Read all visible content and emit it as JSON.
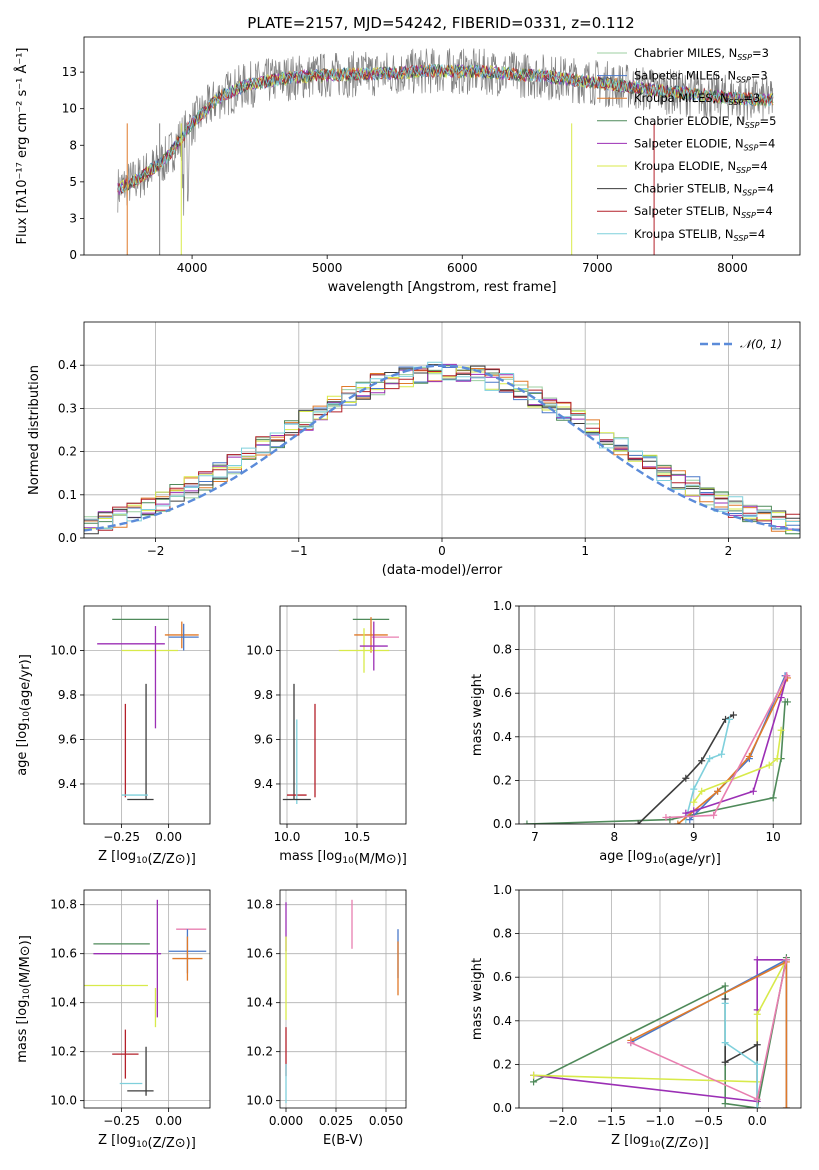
{
  "figure": {
    "title": "PLATE=2157, MJD=54242, FIBERID=0331, z=0.112"
  },
  "chart_data": [
    {
      "id": "spectrum",
      "type": "line",
      "xlabel": "wavelength [Angstrom, rest frame]",
      "ylabel": "Flux [fλ10⁻¹⁷ erg cm⁻² s⁻¹ Å⁻¹]",
      "xlim": [
        3200,
        8500
      ],
      "ylim": [
        0,
        14.9
      ],
      "xticks": [
        4000,
        5000,
        6000,
        7000,
        8000
      ],
      "yticks": [
        0.0,
        2.5,
        5.0,
        7.5,
        10.0,
        12.5
      ],
      "grid": false,
      "legend_position": "right",
      "data_continuum": {
        "x": [
          3450,
          3600,
          3800,
          4000,
          4200,
          4400,
          4700,
          5000,
          5400,
          5800,
          6200,
          6600,
          7000,
          7400,
          7800,
          8200
        ],
        "y": [
          4.5,
          5.2,
          6.5,
          9.0,
          10.8,
          11.6,
          12.1,
          12.3,
          12.4,
          12.6,
          12.5,
          12.2,
          11.8,
          11.3,
          10.9,
          10.6
        ]
      },
      "series": [
        {
          "name": "Chabrier MILES, N_SSP=3",
          "color": "#9ccfa0"
        },
        {
          "name": "Salpeter MILES, N_SSP=3",
          "color": "#4a78c8"
        },
        {
          "name": "Kroupa MILES, N_SSP=3",
          "color": "#e07a2a"
        },
        {
          "name": "Chabrier ELODIE, N_SSP=5",
          "color": "#4f8a5a"
        },
        {
          "name": "Salpeter ELODIE, N_SSP=4",
          "color": "#9b2fb5"
        },
        {
          "name": "Kroupa ELODIE, N_SSP=4",
          "color": "#d8ea4a"
        },
        {
          "name": "Chabrier STELIB, N_SSP=4",
          "color": "#3d3d3d"
        },
        {
          "name": "Salpeter STELIB, N_SSP=4",
          "color": "#b3202a"
        },
        {
          "name": "Kroupa STELIB, N_SSP=4",
          "color": "#7fd0dc"
        }
      ]
    },
    {
      "id": "residuals",
      "type": "line",
      "xlabel": "(data-model)/error",
      "ylabel": "Normed distribution",
      "xlim": [
        -2.5,
        2.5
      ],
      "ylim": [
        0,
        0.5
      ],
      "xticks": [
        -2,
        -1,
        0,
        1,
        2
      ],
      "yticks": [
        0.0,
        0.1,
        0.2,
        0.3,
        0.4
      ],
      "grid": true,
      "legend_position": "top-right",
      "reference_curve": {
        "name": "𝒩(0, 1)",
        "color": "#5b8bd9",
        "mean": 0,
        "sigma": 1
      },
      "histogram_bin_width": 0.1
    },
    {
      "id": "age-vs-Z",
      "type": "scatter",
      "xlabel": "Z [log₁₀(Z/Z⊙)]",
      "ylabel": "age  [log₁₀(age/yr)]",
      "xlim": [
        -0.45,
        0.22
      ],
      "ylim": [
        9.22,
        10.2
      ],
      "xticks": [
        -0.25,
        0.0
      ],
      "yticks": [
        9.4,
        9.6,
        9.8,
        10.0
      ],
      "grid": true,
      "points": [
        {
          "x": -0.15,
          "y": 10.14,
          "xerr": 0.15,
          "yerr": 0.0,
          "color": "#4f8a5a"
        },
        {
          "x": 0.07,
          "y": 10.07,
          "xerr": 0.09,
          "yerr": 0.06,
          "color": "#e07a2a"
        },
        {
          "x": 0.08,
          "y": 10.06,
          "xerr": 0.08,
          "yerr": 0.06,
          "color": "#4a78c8"
        },
        {
          "x": -0.2,
          "y": 10.03,
          "xerr": 0.18,
          "yerr": 0.0,
          "color": "#9b2fb5"
        },
        {
          "x": -0.1,
          "y": 10.0,
          "xerr": 0.15,
          "yerr": 0.0,
          "color": "#d8ea4a"
        },
        {
          "x": -0.07,
          "y": 9.88,
          "xerr": 0.0,
          "yerr": 0.23,
          "color": "#9b2fb5"
        },
        {
          "x": -0.12,
          "y": 9.59,
          "xerr": 0.0,
          "yerr": 0.26,
          "color": "#3d3d3d"
        },
        {
          "x": -0.23,
          "y": 9.55,
          "xerr": 0.0,
          "yerr": 0.21,
          "color": "#b3202a"
        },
        {
          "x": -0.18,
          "y": 9.35,
          "xerr": 0.07,
          "yerr": 0.0,
          "color": "#7fd0dc"
        },
        {
          "x": -0.15,
          "y": 9.33,
          "xerr": 0.07,
          "yerr": 0.0,
          "color": "#3d3d3d"
        }
      ]
    },
    {
      "id": "age-vs-mass",
      "type": "scatter",
      "xlabel": "mass [log₁₀(M/M⊙)]",
      "ylabel": "",
      "xlim": [
        9.95,
        10.85
      ],
      "ylim": [
        9.22,
        10.2
      ],
      "xticks": [
        10.0,
        10.5
      ],
      "yticks": [
        9.4,
        9.6,
        9.8,
        10.0
      ],
      "grid": true,
      "points": [
        {
          "x": 10.6,
          "y": 10.14,
          "xerr": 0.13,
          "yerr": 0.0,
          "color": "#4f8a5a"
        },
        {
          "x": 10.6,
          "y": 10.07,
          "xerr": 0.12,
          "yerr": 0.08,
          "color": "#e07a2a"
        },
        {
          "x": 10.7,
          "y": 10.06,
          "xerr": 0.1,
          "yerr": 0.0,
          "color": "#e87fb0"
        },
        {
          "x": 10.55,
          "y": 10.0,
          "xerr": 0.18,
          "yerr": 0.1,
          "color": "#d8ea4a"
        },
        {
          "x": 10.62,
          "y": 10.02,
          "xerr": 0.1,
          "yerr": 0.11,
          "color": "#9b2fb5"
        },
        {
          "x": 10.05,
          "y": 9.59,
          "xerr": 0.0,
          "yerr": 0.26,
          "color": "#3d3d3d"
        },
        {
          "x": 10.2,
          "y": 9.55,
          "xerr": 0.0,
          "yerr": 0.21,
          "color": "#b3202a"
        },
        {
          "x": 10.07,
          "y": 9.35,
          "xerr": 0.07,
          "yerr": 0.0,
          "color": "#b3202a"
        },
        {
          "x": 10.07,
          "y": 9.5,
          "xerr": 0.0,
          "yerr": 0.19,
          "color": "#7fd0dc"
        },
        {
          "x": 10.07,
          "y": 9.33,
          "xerr": 0.1,
          "yerr": 0.0,
          "color": "#3d3d3d"
        }
      ]
    },
    {
      "id": "massweight-vs-age",
      "type": "line",
      "xlabel": "age  [log₁₀(age/yr)]",
      "ylabel": "mass weight",
      "xlim": [
        6.8,
        10.35
      ],
      "ylim": [
        0,
        1
      ],
      "xticks": [
        7,
        8,
        9,
        10
      ],
      "yticks": [
        0.0,
        0.2,
        0.4,
        0.6,
        0.8,
        1.0
      ],
      "grid": true,
      "series": [
        {
          "color": "#4f8a5a",
          "x": [
            6.9,
            8.7,
            10.0,
            10.1,
            10.15,
            10.18
          ],
          "y": [
            0.0,
            0.02,
            0.12,
            0.3,
            0.56,
            0.56
          ]
        },
        {
          "color": "#3d3d3d",
          "x": [
            8.3,
            8.9,
            9.1,
            9.4,
            9.5
          ],
          "y": [
            0.0,
            0.21,
            0.29,
            0.48,
            0.5
          ]
        },
        {
          "color": "#7fd0dc",
          "x": [
            8.9,
            9.0,
            9.2,
            9.35,
            9.45
          ],
          "y": [
            0.02,
            0.16,
            0.3,
            0.32,
            0.48
          ]
        },
        {
          "color": "#4a78c8",
          "x": [
            8.95,
            9.3,
            9.7,
            10.15
          ],
          "y": [
            0.02,
            0.15,
            0.3,
            0.68
          ]
        },
        {
          "color": "#e07a2a",
          "x": [
            8.8,
            9.3,
            9.7,
            10.18
          ],
          "y": [
            0.0,
            0.15,
            0.31,
            0.67
          ]
        },
        {
          "color": "#9b2fb5",
          "x": [
            8.9,
            9.0,
            9.75,
            10.1,
            10.17
          ],
          "y": [
            0.05,
            0.06,
            0.15,
            0.58,
            0.68
          ]
        },
        {
          "color": "#d8ea4a",
          "x": [
            9.0,
            9.1,
            9.95,
            10.05,
            10.1
          ],
          "y": [
            0.1,
            0.15,
            0.27,
            0.3,
            0.43
          ]
        },
        {
          "color": "#e87fb0",
          "x": [
            8.65,
            9.25,
            10.17
          ],
          "y": [
            0.03,
            0.04,
            0.68
          ]
        }
      ]
    },
    {
      "id": "mass-vs-Z",
      "type": "scatter",
      "xlabel": "Z [log₁₀(Z/Z⊙)]",
      "ylabel": "mass [log₁₀(M/M⊙)]",
      "xlim": [
        -0.45,
        0.22
      ],
      "ylim": [
        9.97,
        10.86
      ],
      "xticks": [
        -0.25,
        0.0
      ],
      "yticks": [
        10.0,
        10.2,
        10.4,
        10.6,
        10.8
      ],
      "grid": true,
      "points": [
        {
          "x": 0.12,
          "y": 10.7,
          "xerr": 0.08,
          "yerr": 0.0,
          "color": "#e87fb0"
        },
        {
          "x": -0.25,
          "y": 10.64,
          "xerr": 0.15,
          "yerr": 0.0,
          "color": "#4f8a5a"
        },
        {
          "x": -0.22,
          "y": 10.6,
          "xerr": 0.18,
          "yerr": 0.0,
          "color": "#9b2fb5"
        },
        {
          "x": 0.1,
          "y": 10.61,
          "xerr": 0.1,
          "yerr": 0.09,
          "color": "#4a78c8"
        },
        {
          "x": 0.1,
          "y": 10.58,
          "xerr": 0.08,
          "yerr": 0.09,
          "color": "#e07a2a"
        },
        {
          "x": -0.06,
          "y": 10.58,
          "xerr": 0.0,
          "yerr": 0.24,
          "color": "#9b2fb5"
        },
        {
          "x": -0.28,
          "y": 10.47,
          "xerr": 0.17,
          "yerr": 0.0,
          "color": "#d8ea4a"
        },
        {
          "x": -0.07,
          "y": 10.38,
          "xerr": 0.0,
          "yerr": 0.08,
          "color": "#d8ea4a"
        },
        {
          "x": -0.23,
          "y": 10.19,
          "xerr": 0.07,
          "yerr": 0.1,
          "color": "#b3202a"
        },
        {
          "x": -0.12,
          "y": 10.12,
          "xerr": 0.0,
          "yerr": 0.1,
          "color": "#3d3d3d"
        },
        {
          "x": -0.2,
          "y": 10.07,
          "xerr": 0.06,
          "yerr": 0.0,
          "color": "#7fd0dc"
        },
        {
          "x": -0.15,
          "y": 10.04,
          "xerr": 0.07,
          "yerr": 0.0,
          "color": "#3d3d3d"
        }
      ]
    },
    {
      "id": "mass-vs-EBV",
      "type": "scatter",
      "xlabel": "E(B-V)",
      "ylabel": "",
      "xlim": [
        -0.003,
        0.06
      ],
      "ylim": [
        9.97,
        10.86
      ],
      "xticks": [
        0.0,
        0.025,
        0.05
      ],
      "yticks": [
        10.0,
        10.2,
        10.4,
        10.6,
        10.8
      ],
      "grid": true,
      "points": [
        {
          "x": 0.0,
          "y": 10.71,
          "xerr": 0.0,
          "yerr": 0.1,
          "color": "#9b2fb5"
        },
        {
          "x": 0.0,
          "y": 10.5,
          "xerr": 0.0,
          "yerr": 0.17,
          "color": "#d8ea4a"
        },
        {
          "x": 0.0,
          "y": 10.2,
          "xerr": 0.0,
          "yerr": 0.1,
          "color": "#b3202a"
        },
        {
          "x": 0.0,
          "y": 10.07,
          "xerr": 0.0,
          "yerr": 0.08,
          "color": "#7fd0dc"
        },
        {
          "x": 0.033,
          "y": 10.72,
          "xerr": 0.0,
          "yerr": 0.1,
          "color": "#e87fb0"
        },
        {
          "x": 0.056,
          "y": 10.6,
          "xerr": 0.0,
          "yerr": 0.1,
          "color": "#4a78c8"
        },
        {
          "x": 0.056,
          "y": 10.54,
          "xerr": 0.0,
          "yerr": 0.11,
          "color": "#e07a2a"
        }
      ]
    },
    {
      "id": "massweight-vs-Z",
      "type": "line",
      "xlabel": "Z [log₁₀(Z/Z⊙)]",
      "ylabel": "mass weight",
      "xlim": [
        -2.45,
        0.45
      ],
      "ylim": [
        0,
        1
      ],
      "xticks": [
        -2.0,
        -1.5,
        -1.0,
        -0.5,
        0.0
      ],
      "yticks": [
        0.0,
        0.2,
        0.4,
        0.6,
        0.8,
        1.0
      ],
      "grid": true,
      "series": [
        {
          "color": "#4f8a5a",
          "x": [
            -2.3,
            -0.33,
            -0.33,
            0.0,
            0.3
          ],
          "y": [
            0.12,
            0.56,
            0.02,
            0.0,
            0.69
          ]
        },
        {
          "color": "#9b2fb5",
          "x": [
            -2.3,
            0.0,
            0.0,
            0.0,
            0.3
          ],
          "y": [
            0.15,
            0.03,
            0.45,
            0.68,
            0.68
          ]
        },
        {
          "color": "#d8ea4a",
          "x": [
            -2.3,
            0.0,
            0.0,
            0.3
          ],
          "y": [
            0.15,
            0.12,
            0.43,
            0.68
          ]
        },
        {
          "color": "#3d3d3d",
          "x": [
            -0.33,
            -0.33,
            0.0,
            0.0
          ],
          "y": [
            0.5,
            0.21,
            0.29,
            0.0
          ]
        },
        {
          "color": "#7fd0dc",
          "x": [
            -0.33,
            -0.33,
            0.0,
            0.0
          ],
          "y": [
            0.48,
            0.3,
            0.2,
            0.0
          ]
        },
        {
          "color": "#4a78c8",
          "x": [
            -1.3,
            0.3,
            0.3
          ],
          "y": [
            0.3,
            0.68,
            0.0
          ]
        },
        {
          "color": "#e07a2a",
          "x": [
            -1.3,
            0.3,
            0.3
          ],
          "y": [
            0.31,
            0.67,
            0.0
          ]
        },
        {
          "color": "#e87fb0",
          "x": [
            -1.3,
            0.0,
            0.3
          ],
          "y": [
            0.3,
            0.04,
            0.68
          ]
        }
      ]
    }
  ]
}
